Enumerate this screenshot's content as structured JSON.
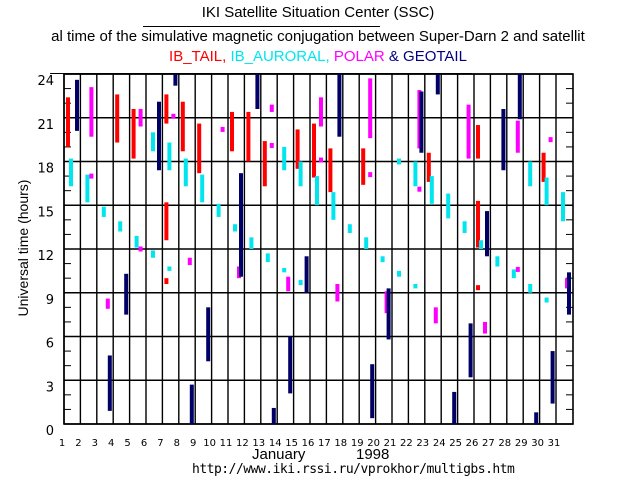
{
  "header": {
    "title": "IKI Satellite Situation Center (SSC)",
    "subtitle": "al time of the simulative magnetic conjugation between Super-Darn 2 and satellit",
    "legend": [
      {
        "label": "IB_TAIL,",
        "color": "#ff0000"
      },
      {
        "label": " IB_AURORAL,",
        "color": "#00e5ee"
      },
      {
        "label": " POLAR",
        "color": "#ff00ff"
      },
      {
        "label": " &",
        "color": "#000080"
      },
      {
        "label": " GEOTAIL",
        "color": "#000080"
      }
    ]
  },
  "footer": {
    "month": "January",
    "year": "1998",
    "url": "http://www.iki.rssi.ru/vprokhor/multigbs.htm"
  },
  "chart_data": {
    "type": "bar",
    "title": "IKI Satellite Situation Center (SSC)",
    "xlabel": "January 1998",
    "ylabel": "Universal time (hours)",
    "x_categories": [
      "1",
      "2",
      "3",
      "4",
      "5",
      "6",
      "7",
      "8",
      "9",
      "10",
      "11",
      "12",
      "13",
      "14",
      "15",
      "16",
      "17",
      "18",
      "19",
      "20",
      "21",
      "22",
      "23",
      "24",
      "25",
      "26",
      "27",
      "28",
      "29",
      "30",
      "31"
    ],
    "y_ticks": [
      "0",
      "3",
      "6",
      "9",
      "12",
      "15",
      "18",
      "21",
      "24"
    ],
    "ylim": [
      0,
      24
    ],
    "grid": true,
    "series": [
      {
        "name": "IB_TAIL",
        "color": "#ff0000",
        "segments": [
          {
            "day": 1,
            "start": 19.0,
            "end": 22.4
          },
          {
            "day": 4,
            "start": 19.3,
            "end": 22.6
          },
          {
            "day": 5,
            "start": 18.2,
            "end": 21.6
          },
          {
            "day": 7,
            "start": 20.6,
            "end": 22.6
          },
          {
            "day": 7,
            "start": 12.6,
            "end": 15.2
          },
          {
            "day": 7,
            "start": 9.6,
            "end": 10.0
          },
          {
            "day": 8,
            "start": 18.7,
            "end": 22.1
          },
          {
            "day": 9,
            "start": 17.2,
            "end": 20.6
          },
          {
            "day": 11,
            "start": 18.7,
            "end": 21.4
          },
          {
            "day": 12,
            "start": 18.0,
            "end": 21.4
          },
          {
            "day": 13,
            "start": 16.3,
            "end": 19.4
          },
          {
            "day": 15,
            "start": 17.5,
            "end": 20.2
          },
          {
            "day": 16,
            "start": 16.9,
            "end": 20.6
          },
          {
            "day": 17,
            "start": 15.9,
            "end": 18.9
          },
          {
            "day": 19,
            "start": 16.4,
            "end": 18.9
          },
          {
            "day": 23,
            "start": 16.6,
            "end": 18.6
          },
          {
            "day": 26,
            "start": 18.2,
            "end": 20.5
          },
          {
            "day": 26,
            "start": 12.1,
            "end": 15.3
          },
          {
            "day": 26,
            "start": 9.3,
            "end": 9.4
          },
          {
            "day": 30,
            "start": 16.6,
            "end": 18.6
          }
        ]
      },
      {
        "name": "IB_AURORAL",
        "color": "#00e5ee",
        "segments": [
          {
            "day": 1,
            "start": 16.3,
            "end": 18.2
          },
          {
            "day": 2,
            "start": 15.2,
            "end": 17.1
          },
          {
            "day": 3,
            "start": 14.2,
            "end": 14.9
          },
          {
            "day": 4,
            "start": 13.2,
            "end": 13.9
          },
          {
            "day": 5,
            "start": 12.1,
            "end": 12.9
          },
          {
            "day": 6,
            "start": 18.7,
            "end": 20.0
          },
          {
            "day": 6,
            "start": 11.4,
            "end": 11.9
          },
          {
            "day": 7,
            "start": 17.4,
            "end": 19.3
          },
          {
            "day": 7,
            "start": 10.5,
            "end": 10.8
          },
          {
            "day": 8,
            "start": 16.3,
            "end": 18.2
          },
          {
            "day": 9,
            "start": 15.2,
            "end": 17.1
          },
          {
            "day": 10,
            "start": 14.2,
            "end": 15.1
          },
          {
            "day": 11,
            "start": 13.2,
            "end": 13.7
          },
          {
            "day": 12,
            "start": 12.0,
            "end": 12.8
          },
          {
            "day": 13,
            "start": 11.1,
            "end": 11.7
          },
          {
            "day": 14,
            "start": 17.4,
            "end": 19.0
          },
          {
            "day": 14,
            "start": 10.4,
            "end": 10.7
          },
          {
            "day": 15,
            "start": 16.3,
            "end": 18.0
          },
          {
            "day": 15,
            "start": 9.6,
            "end": 9.8
          },
          {
            "day": 16,
            "start": 15.0,
            "end": 17.0
          },
          {
            "day": 17,
            "start": 14.0,
            "end": 15.9
          },
          {
            "day": 18,
            "start": 13.1,
            "end": 13.7
          },
          {
            "day": 19,
            "start": 12.0,
            "end": 12.8
          },
          {
            "day": 20,
            "start": 11.1,
            "end": 11.5
          },
          {
            "day": 21,
            "start": 17.8,
            "end": 18.2
          },
          {
            "day": 21,
            "start": 10.1,
            "end": 10.5
          },
          {
            "day": 22,
            "start": 16.3,
            "end": 18.0
          },
          {
            "day": 22,
            "start": 9.3,
            "end": 9.6
          },
          {
            "day": 23,
            "start": 15.1,
            "end": 17.0
          },
          {
            "day": 24,
            "start": 14.1,
            "end": 15.8
          },
          {
            "day": 25,
            "start": 13.1,
            "end": 13.9
          },
          {
            "day": 26,
            "start": 12.0,
            "end": 12.6
          },
          {
            "day": 27,
            "start": 10.8,
            "end": 11.5
          },
          {
            "day": 28,
            "start": 10.0,
            "end": 10.6
          },
          {
            "day": 29,
            "start": 16.3,
            "end": 18.0
          },
          {
            "day": 29,
            "start": 9.0,
            "end": 9.6
          },
          {
            "day": 30,
            "start": 15.0,
            "end": 16.9
          },
          {
            "day": 30,
            "start": 8.4,
            "end": 8.6
          },
          {
            "day": 31,
            "start": 13.9,
            "end": 15.9
          }
        ]
      },
      {
        "name": "POLAR",
        "color": "#ff00ff",
        "segments": [
          {
            "day": 2,
            "start": 19.7,
            "end": 23.1
          },
          {
            "day": 2,
            "start": 16.9,
            "end": 17.1
          },
          {
            "day": 3,
            "start": 7.9,
            "end": 8.6
          },
          {
            "day": 5,
            "start": 20.4,
            "end": 21.6
          },
          {
            "day": 5,
            "start": 11.9,
            "end": 12.1
          },
          {
            "day": 7,
            "start": 21.0,
            "end": 21.2
          },
          {
            "day": 8,
            "start": 10.9,
            "end": 11.4
          },
          {
            "day": 10,
            "start": 20.1,
            "end": 20.3
          },
          {
            "day": 11,
            "start": 10.0,
            "end": 10.8
          },
          {
            "day": 13,
            "start": 21.4,
            "end": 21.9
          },
          {
            "day": 13,
            "start": 19.0,
            "end": 19.2
          },
          {
            "day": 14,
            "start": 9.1,
            "end": 10.1
          },
          {
            "day": 16,
            "start": 20.4,
            "end": 22.4
          },
          {
            "day": 16,
            "start": 18.0,
            "end": 18.2
          },
          {
            "day": 17,
            "start": 8.4,
            "end": 9.6
          },
          {
            "day": 19,
            "start": 19.6,
            "end": 23.7
          },
          {
            "day": 19,
            "start": 17.0,
            "end": 17.2
          },
          {
            "day": 20,
            "start": 7.6,
            "end": 9.1
          },
          {
            "day": 22,
            "start": 18.9,
            "end": 22.9
          },
          {
            "day": 22,
            "start": 16.0,
            "end": 16.2
          },
          {
            "day": 23,
            "start": 6.9,
            "end": 8.0
          },
          {
            "day": 25,
            "start": 18.2,
            "end": 21.9
          },
          {
            "day": 26,
            "start": 6.2,
            "end": 7.0
          },
          {
            "day": 28,
            "start": 18.6,
            "end": 20.8
          },
          {
            "day": 28,
            "start": 10.5,
            "end": 10.7
          },
          {
            "day": 30,
            "start": 19.4,
            "end": 19.6
          },
          {
            "day": 31,
            "start": 9.3,
            "end": 10.0
          }
        ]
      },
      {
        "name": "GEOTAIL",
        "color": "#000066",
        "segments": [
          {
            "day": 1,
            "start": 20.1,
            "end": 23.6
          },
          {
            "day": 3,
            "start": 0.9,
            "end": 4.7
          },
          {
            "day": 4,
            "start": 7.5,
            "end": 10.3
          },
          {
            "day": 6,
            "start": 17.4,
            "end": 22.1
          },
          {
            "day": 7,
            "start": 23.2,
            "end": 24.0
          },
          {
            "day": 8,
            "start": 0.0,
            "end": 2.7
          },
          {
            "day": 9,
            "start": 4.3,
            "end": 8.0
          },
          {
            "day": 11,
            "start": 10.1,
            "end": 17.2
          },
          {
            "day": 12,
            "start": 21.6,
            "end": 24.0
          },
          {
            "day": 13,
            "start": 0.0,
            "end": 1.1
          },
          {
            "day": 14,
            "start": 2.1,
            "end": 6.0
          },
          {
            "day": 15,
            "start": 9.0,
            "end": 11.5
          },
          {
            "day": 17,
            "start": 19.7,
            "end": 24.0
          },
          {
            "day": 19,
            "start": 0.4,
            "end": 4.1
          },
          {
            "day": 20,
            "start": 5.8,
            "end": 9.3
          },
          {
            "day": 22,
            "start": 18.6,
            "end": 22.8
          },
          {
            "day": 23,
            "start": 22.6,
            "end": 24.0
          },
          {
            "day": 24,
            "start": 0.0,
            "end": 2.2
          },
          {
            "day": 25,
            "start": 3.2,
            "end": 6.9
          },
          {
            "day": 26,
            "start": 11.5,
            "end": 14.6
          },
          {
            "day": 27,
            "start": 17.4,
            "end": 21.6
          },
          {
            "day": 28,
            "start": 20.9,
            "end": 24.0
          },
          {
            "day": 29,
            "start": 0.0,
            "end": 0.8
          },
          {
            "day": 30,
            "start": 1.4,
            "end": 5.0
          },
          {
            "day": 31,
            "start": 7.5,
            "end": 10.4
          }
        ]
      }
    ]
  }
}
